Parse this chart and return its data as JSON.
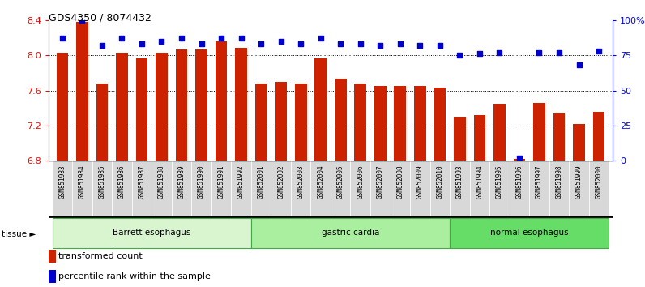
{
  "title": "GDS4350 / 8074432",
  "samples": [
    "GSM851983",
    "GSM851984",
    "GSM851985",
    "GSM851986",
    "GSM851987",
    "GSM851988",
    "GSM851989",
    "GSM851990",
    "GSM851991",
    "GSM851992",
    "GSM852001",
    "GSM852002",
    "GSM852003",
    "GSM852004",
    "GSM852005",
    "GSM852006",
    "GSM852007",
    "GSM852008",
    "GSM852009",
    "GSM852010",
    "GSM851993",
    "GSM851994",
    "GSM851995",
    "GSM851996",
    "GSM851997",
    "GSM851998",
    "GSM851999",
    "GSM852000"
  ],
  "bar_values": [
    8.03,
    8.38,
    7.68,
    8.03,
    7.96,
    8.03,
    8.07,
    8.07,
    8.16,
    8.08,
    7.68,
    7.7,
    7.68,
    7.96,
    7.73,
    7.68,
    7.65,
    7.65,
    7.65,
    7.63,
    7.3,
    7.32,
    7.45,
    6.82,
    7.46,
    7.35,
    7.22,
    7.36
  ],
  "percentile_values": [
    87,
    100,
    82,
    87,
    83,
    85,
    87,
    83,
    87,
    87,
    83,
    85,
    83,
    87,
    83,
    83,
    82,
    83,
    82,
    82,
    75,
    76,
    77,
    2,
    77,
    77,
    68,
    78
  ],
  "groups": [
    {
      "label": "Barrett esophagus",
      "start": 0,
      "end": 9,
      "color": "#d8f5d0"
    },
    {
      "label": "gastric cardia",
      "start": 10,
      "end": 19,
      "color": "#aaeea0"
    },
    {
      "label": "normal esophagus",
      "start": 20,
      "end": 27,
      "color": "#66dd66"
    }
  ],
  "bar_color": "#cc2200",
  "dot_color": "#0000cc",
  "ylim_left": [
    6.8,
    8.4
  ],
  "ylim_right": [
    0,
    100
  ],
  "yticks_left": [
    6.8,
    7.2,
    7.6,
    8.0,
    8.4
  ],
  "yticks_right": [
    0,
    25,
    50,
    75,
    100
  ],
  "ytick_labels_right": [
    "0",
    "25",
    "50",
    "75",
    "100%"
  ],
  "grid_values": [
    8.0,
    7.6,
    7.2
  ],
  "legend": [
    {
      "color": "#cc2200",
      "label": "transformed count"
    },
    {
      "color": "#0000cc",
      "label": "percentile rank within the sample"
    }
  ]
}
